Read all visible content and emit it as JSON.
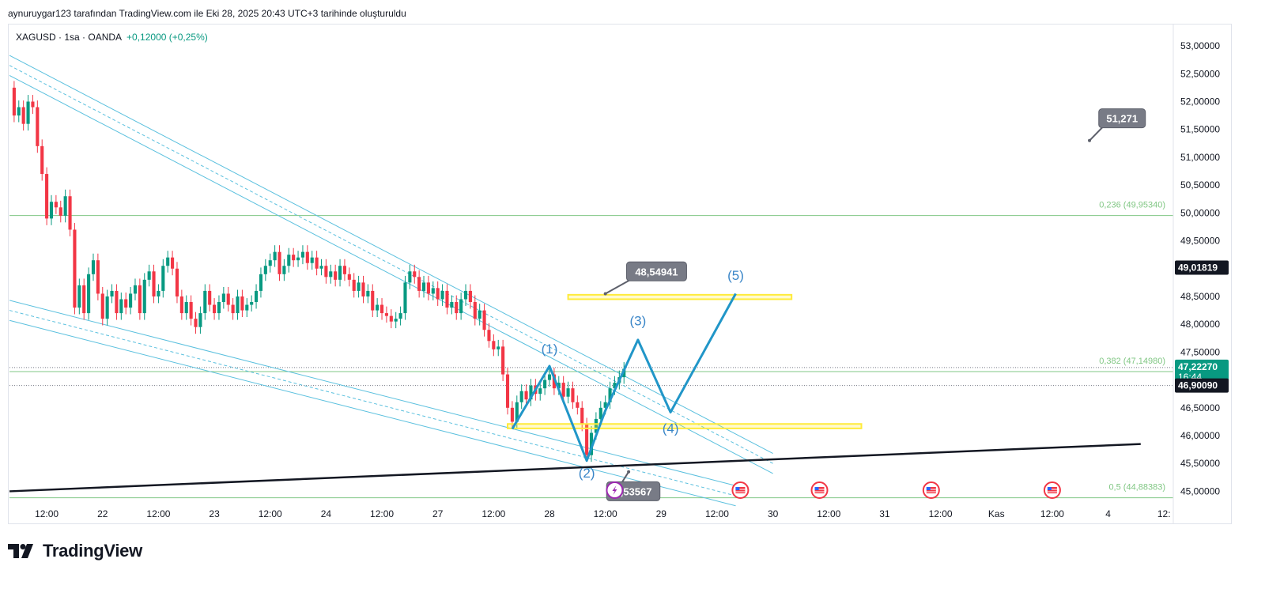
{
  "header": {
    "attribution": "aynuruygar123 tarafından TradingView.com ile Eki 28, 2025 20:43 UTC+3 tarihinde oluşturuldu"
  },
  "legend": {
    "symbol": "XAGUSD · 1sa · OANDA",
    "change": "+0,12000 (+0,25%)"
  },
  "brand": {
    "name": "TradingView",
    "logo_icon": "tradingview-logo-icon"
  },
  "colors": {
    "up": "#089981",
    "down": "#f23645",
    "channel": "#5bc0de",
    "wave": "#2196c8",
    "wave_label": "#3a86c8",
    "fib": "#81c784",
    "zone": "#ffeb3b",
    "trend": "#131722"
  },
  "chart_data": {
    "type": "candlestick",
    "symbol": "XAGUSD",
    "interval": "1sa",
    "ylim": [
      44.85,
      53.2
    ],
    "xlim": [
      0,
      250
    ],
    "y_ticks": [
      "53,00000",
      "52,50000",
      "52,00000",
      "51,50000",
      "51,00000",
      "50,50000",
      "50,00000",
      "49,50000",
      "49,00000",
      "48,50000",
      "48,00000",
      "47,50000",
      "47,00000",
      "46,50000",
      "46,00000",
      "45,50000",
      "45,00000"
    ],
    "x_ticks": [
      {
        "x": 8,
        "label": "12:00"
      },
      {
        "x": 20,
        "label": "22"
      },
      {
        "x": 32,
        "label": "12:00"
      },
      {
        "x": 44,
        "label": "23"
      },
      {
        "x": 56,
        "label": "12:00"
      },
      {
        "x": 68,
        "label": "24"
      },
      {
        "x": 80,
        "label": "12:00"
      },
      {
        "x": 92,
        "label": "27"
      },
      {
        "x": 104,
        "label": "12:00"
      },
      {
        "x": 116,
        "label": "28"
      },
      {
        "x": 128,
        "label": "12:00"
      },
      {
        "x": 140,
        "label": "29"
      },
      {
        "x": 152,
        "label": "12:00"
      },
      {
        "x": 164,
        "label": "30"
      },
      {
        "x": 176,
        "label": "12:00"
      },
      {
        "x": 188,
        "label": "31"
      },
      {
        "x": 200,
        "label": "12:00"
      },
      {
        "x": 212,
        "label": "Kas"
      },
      {
        "x": 224,
        "label": "12:00"
      },
      {
        "x": 236,
        "label": "4"
      },
      {
        "x": 248,
        "label": "12:"
      }
    ],
    "candle_close_path": [
      [
        0,
        52.25
      ],
      [
        1,
        51.75
      ],
      [
        2,
        51.9
      ],
      [
        3,
        51.6
      ],
      [
        4,
        52.0
      ],
      [
        5,
        51.9
      ],
      [
        6,
        51.2
      ],
      [
        7,
        50.7
      ],
      [
        8,
        49.9
      ],
      [
        9,
        50.2
      ],
      [
        10,
        50.1
      ],
      [
        11,
        49.95
      ],
      [
        12,
        50.3
      ],
      [
        13,
        49.7
      ],
      [
        14,
        48.3
      ],
      [
        15,
        48.7
      ],
      [
        16,
        48.2
      ],
      [
        17,
        48.9
      ],
      [
        18,
        49.15
      ],
      [
        19,
        48.55
      ],
      [
        20,
        48.1
      ],
      [
        21,
        48.5
      ],
      [
        22,
        48.6
      ],
      [
        23,
        48.2
      ],
      [
        24,
        48.45
      ],
      [
        25,
        48.3
      ],
      [
        26,
        48.55
      ],
      [
        27,
        48.7
      ],
      [
        28,
        48.2
      ],
      [
        29,
        48.8
      ],
      [
        30,
        48.95
      ],
      [
        31,
        48.5
      ],
      [
        32,
        48.6
      ],
      [
        33,
        49.05
      ],
      [
        34,
        49.2
      ],
      [
        35,
        49.0
      ],
      [
        36,
        48.5
      ],
      [
        37,
        48.2
      ],
      [
        38,
        48.4
      ],
      [
        39,
        48.1
      ],
      [
        40,
        47.95
      ],
      [
        41,
        48.2
      ],
      [
        42,
        48.6
      ],
      [
        43,
        48.35
      ],
      [
        44,
        48.2
      ],
      [
        45,
        48.4
      ],
      [
        46,
        48.55
      ],
      [
        47,
        48.35
      ],
      [
        48,
        48.2
      ],
      [
        49,
        48.5
      ],
      [
        50,
        48.25
      ],
      [
        51,
        48.35
      ],
      [
        52,
        48.4
      ],
      [
        53,
        48.6
      ],
      [
        54,
        48.9
      ],
      [
        55,
        49.05
      ],
      [
        56,
        49.15
      ],
      [
        57,
        49.3
      ],
      [
        58,
        48.9
      ],
      [
        59,
        49.05
      ],
      [
        60,
        49.25
      ],
      [
        61,
        49.15
      ],
      [
        62,
        49.2
      ],
      [
        63,
        49.3
      ],
      [
        64,
        49.1
      ],
      [
        65,
        49.2
      ],
      [
        66,
        49.0
      ],
      [
        67,
        49.05
      ],
      [
        68,
        48.85
      ],
      [
        69,
        48.95
      ],
      [
        70,
        48.8
      ],
      [
        71,
        49.05
      ],
      [
        72,
        48.9
      ],
      [
        73,
        48.8
      ],
      [
        74,
        48.6
      ],
      [
        75,
        48.75
      ],
      [
        76,
        48.5
      ],
      [
        77,
        48.6
      ],
      [
        78,
        48.25
      ],
      [
        79,
        48.35
      ],
      [
        80,
        48.2
      ],
      [
        81,
        48.15
      ],
      [
        82,
        48.05
      ],
      [
        83,
        48.1
      ],
      [
        84,
        48.2
      ],
      [
        85,
        48.75
      ],
      [
        86,
        48.95
      ],
      [
        87,
        48.85
      ],
      [
        88,
        48.6
      ],
      [
        89,
        48.75
      ],
      [
        90,
        48.55
      ],
      [
        91,
        48.65
      ],
      [
        92,
        48.45
      ],
      [
        93,
        48.6
      ],
      [
        94,
        48.3
      ],
      [
        95,
        48.4
      ],
      [
        96,
        48.2
      ],
      [
        97,
        48.45
      ],
      [
        98,
        48.6
      ],
      [
        99,
        48.4
      ],
      [
        100,
        48.1
      ],
      [
        101,
        48.25
      ],
      [
        102,
        47.9
      ],
      [
        103,
        47.7
      ],
      [
        104,
        47.55
      ],
      [
        105,
        47.6
      ],
      [
        106,
        47.1
      ],
      [
        107,
        46.5
      ],
      [
        108,
        46.25
      ],
      [
        109,
        46.6
      ],
      [
        110,
        46.8
      ],
      [
        111,
        46.65
      ],
      [
        112,
        46.9
      ],
      [
        113,
        46.75
      ],
      [
        114,
        46.85
      ],
      [
        115,
        47.0
      ],
      [
        116,
        47.1
      ],
      [
        117,
        46.85
      ],
      [
        118,
        46.95
      ],
      [
        119,
        46.7
      ],
      [
        120,
        46.85
      ],
      [
        121,
        46.6
      ],
      [
        122,
        46.5
      ],
      [
        123,
        46.2
      ],
      [
        124,
        45.65
      ],
      [
        125,
        46.05
      ],
      [
        126,
        46.3
      ],
      [
        127,
        46.5
      ],
      [
        128,
        46.6
      ],
      [
        129,
        46.85
      ],
      [
        130,
        46.95
      ],
      [
        131,
        47.05
      ],
      [
        132,
        47.2
      ]
    ],
    "candles_wick_note": "bodies drawn between consecutive closes; wicks ±0.12",
    "fib_levels": [
      {
        "label": "0,236 (49,95340)",
        "y": 49.9534
      },
      {
        "label": "0,382 (47,14980)",
        "y": 47.1498
      },
      {
        "label": "0,5 (44,88383)",
        "y": 44.88383
      }
    ],
    "zones": [
      {
        "x0": 120,
        "x1": 168,
        "y0": 48.45,
        "y1": 48.53
      },
      {
        "x0": 107,
        "x1": 183,
        "y0": 46.13,
        "y1": 46.21
      }
    ],
    "channels": [
      {
        "p1": [
          0,
          52.65
        ],
        "p2": [
          164,
          45.5
        ],
        "width": 0.18
      },
      {
        "p1": [
          0,
          48.25
        ],
        "p2": [
          156,
          44.92
        ],
        "width": 0.18
      }
    ],
    "trendline": {
      "p1": [
        0,
        45.0
      ],
      "p2": [
        243,
        45.85
      ]
    },
    "wave_path": [
      [
        108,
        46.12
      ],
      [
        116,
        47.25
      ],
      [
        124,
        45.55
      ],
      [
        128,
        46.45
      ],
      [
        135,
        47.72
      ],
      [
        142,
        46.42
      ],
      [
        156,
        48.55
      ]
    ],
    "wave_labels": [
      {
        "text": "(1)",
        "x": 116,
        "y": 47.48
      },
      {
        "text": "(2)",
        "x": 124,
        "y": 45.25
      },
      {
        "text": "(3)",
        "x": 135,
        "y": 47.98
      },
      {
        "text": "(4)",
        "x": 142,
        "y": 46.05
      },
      {
        "text": "(5)",
        "x": 156,
        "y": 48.8
      }
    ],
    "callouts": [
      {
        "text": "48,54941",
        "x": 139,
        "y": 48.95,
        "anchor_x": 128,
        "anchor_y": 48.55
      },
      {
        "text": "51,271",
        "x": 239,
        "y": 51.7,
        "anchor_x": 232,
        "anchor_y": 51.3
      },
      {
        "text": "1,53567",
        "x": 134,
        "y": 45.0,
        "anchor_x": 133,
        "anchor_y": 45.35
      }
    ],
    "price_markers": [
      {
        "label": "49,01819",
        "y": 49.01819,
        "bg": "#131722",
        "fg": "#ffffff"
      },
      {
        "label": "47,22270",
        "sub": "16:44",
        "y": 47.2227,
        "bg": "#089981",
        "fg": "#ffffff"
      },
      {
        "label": "46,90090",
        "y": 46.9009,
        "bg": "#131722",
        "fg": "#ffffff"
      }
    ],
    "dotted_lines": [
      47.2227,
      46.9009
    ],
    "event_icons": [
      {
        "x": 130,
        "kind": "lightning-icon"
      },
      {
        "x": 157,
        "kind": "flag-icon"
      },
      {
        "x": 174,
        "kind": "flag-icon"
      },
      {
        "x": 198,
        "kind": "flag-icon"
      },
      {
        "x": 224,
        "kind": "flag-icon"
      }
    ]
  }
}
